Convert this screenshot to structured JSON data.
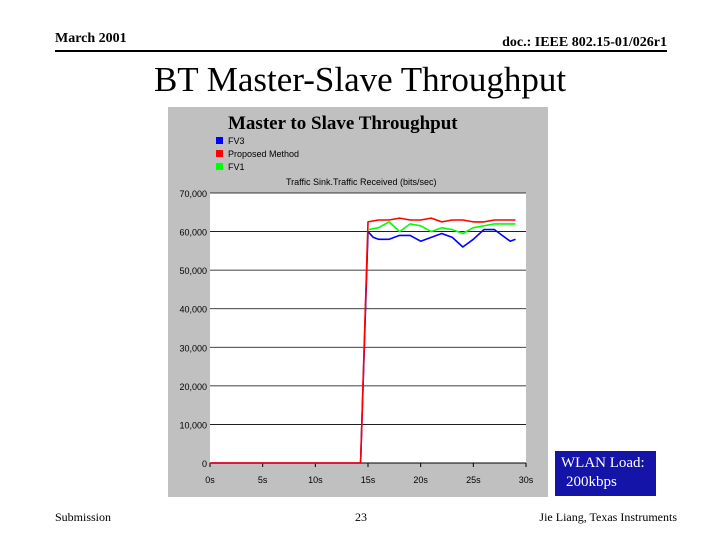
{
  "header": {
    "date": "March 2001",
    "doc_id": "doc.: IEEE 802.15-01/026r1"
  },
  "slide_title": "BT Master-Slave Throughput",
  "footer": {
    "left": "Submission",
    "page": "23",
    "author": "Jie Liang, Texas Instruments"
  },
  "wlan_note": {
    "line1": "WLAN Load:",
    "line2": "200kbps"
  },
  "colors": {
    "panel": "#c0c0c0",
    "plot_bg": "#ffffff",
    "grid": "#000000",
    "wlan_box": "#1414a8"
  },
  "chart_data": {
    "type": "line",
    "title": "Master to Slave Throughput",
    "subtitle": "Traffic Sink.Traffic Received (bits/sec)",
    "xlabel": "",
    "ylabel": "",
    "xlim": [
      0,
      30
    ],
    "ylim": [
      0,
      70000
    ],
    "x_ticks": [
      0,
      5,
      10,
      15,
      20,
      25,
      30
    ],
    "x_tick_labels": [
      "0s",
      "5s",
      "10s",
      "15s",
      "20s",
      "25s",
      "30s"
    ],
    "y_ticks": [
      0,
      10000,
      20000,
      30000,
      40000,
      50000,
      60000,
      70000
    ],
    "y_tick_labels": [
      "0",
      "10,000",
      "20,000",
      "30,000",
      "40,000",
      "50,000",
      "60,000",
      "70,000"
    ],
    "grid": "horizontal",
    "legend_position": "top-left",
    "series": [
      {
        "name": "FV3",
        "color": "#0000ff",
        "points": [
          [
            0,
            0
          ],
          [
            14,
            0
          ],
          [
            14.3,
            0
          ],
          [
            15,
            60000
          ],
          [
            15.5,
            58500
          ],
          [
            16,
            58000
          ],
          [
            17,
            58000
          ],
          [
            18,
            59000
          ],
          [
            19,
            59000
          ],
          [
            20,
            57500
          ],
          [
            21,
            58500
          ],
          [
            22,
            59500
          ],
          [
            23,
            58500
          ],
          [
            24,
            56000
          ],
          [
            25,
            58000
          ],
          [
            26,
            60500
          ],
          [
            27,
            60500
          ],
          [
            28,
            58500
          ],
          [
            28.5,
            57500
          ],
          [
            29,
            58000
          ]
        ]
      },
      {
        "name": "Proposed Method",
        "color": "#ff0000",
        "points": [
          [
            0,
            0
          ],
          [
            14,
            0
          ],
          [
            14.3,
            0
          ],
          [
            15,
            62500
          ],
          [
            16,
            63000
          ],
          [
            17,
            63000
          ],
          [
            18,
            63500
          ],
          [
            19,
            63000
          ],
          [
            20,
            63000
          ],
          [
            21,
            63500
          ],
          [
            22,
            62500
          ],
          [
            23,
            63000
          ],
          [
            24,
            63000
          ],
          [
            25,
            62500
          ],
          [
            26,
            62500
          ],
          [
            27,
            63000
          ],
          [
            28,
            63000
          ],
          [
            29,
            63000
          ]
        ]
      },
      {
        "name": "FV1",
        "color": "#00ff00",
        "points": [
          [
            15,
            60500
          ],
          [
            16,
            61000
          ],
          [
            17,
            62500
          ],
          [
            18,
            60000
          ],
          [
            19,
            62000
          ],
          [
            20,
            61500
          ],
          [
            21,
            60000
          ],
          [
            22,
            61000
          ],
          [
            23,
            60500
          ],
          [
            24,
            59500
          ],
          [
            25,
            61000
          ],
          [
            26,
            61500
          ],
          [
            27,
            62000
          ],
          [
            28,
            62000
          ],
          [
            29,
            62000
          ]
        ]
      }
    ]
  }
}
